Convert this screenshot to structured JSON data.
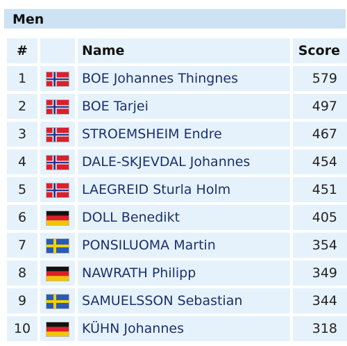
{
  "section": {
    "title": "Men"
  },
  "columns": {
    "rank": "#",
    "flag": "",
    "name": "Name",
    "score": "Score"
  },
  "flags": {
    "norway-flag": {
      "red": "#d8202f",
      "white": "#ffffff",
      "blue": "#1f3a93"
    },
    "germany-flag": {
      "black": "#111111",
      "red": "#dd1f26",
      "gold": "#f4c400"
    },
    "sweden-flag": {
      "blue": "#2a5ab8",
      "yellow": "#f2d100"
    }
  },
  "rows": [
    {
      "rank": "1",
      "flag": "norway-flag",
      "name": "BOE Johannes Thingnes",
      "score": "579"
    },
    {
      "rank": "2",
      "flag": "norway-flag",
      "name": "BOE Tarjei",
      "score": "497"
    },
    {
      "rank": "3",
      "flag": "norway-flag",
      "name": "STROEMSHEIM Endre",
      "score": "467"
    },
    {
      "rank": "4",
      "flag": "norway-flag",
      "name": "DALE-SKJEVDAL Johannes",
      "score": "454"
    },
    {
      "rank": "5",
      "flag": "norway-flag",
      "name": "LAEGREID Sturla Holm",
      "score": "451"
    },
    {
      "rank": "6",
      "flag": "germany-flag",
      "name": "DOLL Benedikt",
      "score": "405"
    },
    {
      "rank": "7",
      "flag": "sweden-flag",
      "name": "PONSILUOMA Martin",
      "score": "354"
    },
    {
      "rank": "8",
      "flag": "germany-flag",
      "name": "NAWRATH Philipp",
      "score": "349"
    },
    {
      "rank": "9",
      "flag": "sweden-flag",
      "name": "SAMUELSSON Sebastian",
      "score": "344"
    },
    {
      "rank": "10",
      "flag": "germany-flag",
      "name": "KÜHN Johannes",
      "score": "318"
    }
  ]
}
